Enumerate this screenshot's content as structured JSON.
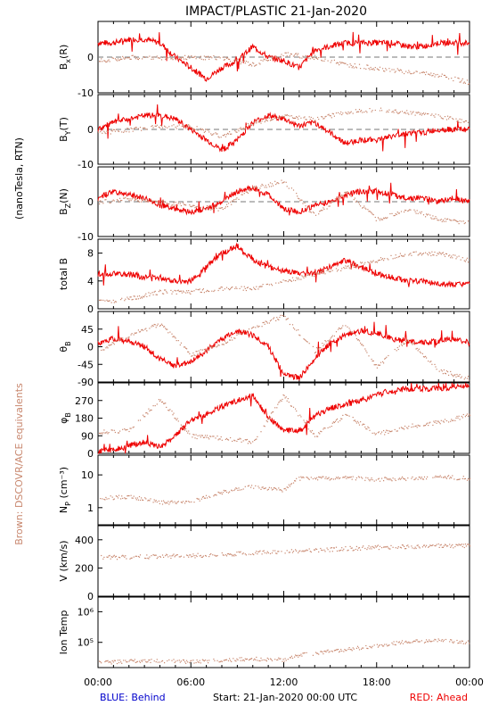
{
  "title": "IMPACT/PLASTIC   21-Jan-2020",
  "left_label_rtn": "(nanoTesla, RTN)",
  "left_label_brown": "Brown: DSCOVR/ACE equivalents",
  "footer": {
    "blue": "BLUE: Behind",
    "start": "Start: 21-Jan-2020 00:00 UTC",
    "red": "RED: Ahead"
  },
  "x_ticks": [
    "00:00",
    "06:00",
    "12:00",
    "18:00",
    "00:00"
  ],
  "colors": {
    "ahead": "#ee0000",
    "dscovr": "#c8876e",
    "behind": "#0000cc",
    "dashed": "#777777"
  },
  "chart_data": [
    {
      "type": "scatter",
      "id": "bx",
      "ylabel": "Bx(R)",
      "ylabel_main": "B",
      "ylabel_sub": "x",
      "ylabel_tail": "(R)",
      "ylim": [
        -10,
        10
      ],
      "ticks": [
        "0",
        "-10"
      ],
      "dashed_zero": true,
      "series": [
        {
          "name": "RED: Ahead",
          "x": [
            0,
            1,
            2,
            3,
            4,
            5,
            6,
            7,
            8,
            9,
            10,
            11,
            12,
            13,
            14,
            15,
            16,
            17,
            18,
            19,
            20,
            21,
            22,
            23,
            24
          ],
          "y": [
            4,
            4,
            5,
            5,
            4,
            0,
            -3,
            -6,
            -3,
            -1,
            3,
            0,
            -1,
            -3,
            2,
            3,
            4,
            4,
            4,
            4,
            3,
            3,
            4,
            4,
            4
          ]
        },
        {
          "name": "DSCOVR/ACE",
          "x": [
            0,
            2,
            4,
            6,
            8,
            10,
            12,
            14,
            16,
            18,
            20,
            22,
            24
          ],
          "y": [
            -1,
            0,
            0,
            0,
            0,
            -2,
            1,
            0,
            -2,
            -3,
            -4,
            -5,
            -7
          ]
        }
      ]
    },
    {
      "type": "scatter",
      "id": "by",
      "ylabel": "By(T)",
      "ylabel_main": "B",
      "ylabel_sub": "Y",
      "ylabel_tail": "(T)",
      "ylim": [
        -10,
        10
      ],
      "ticks": [
        "0",
        "-10"
      ],
      "dashed_zero": true,
      "series": [
        {
          "name": "RED: Ahead",
          "x": [
            0,
            1,
            2,
            3,
            4,
            5,
            6,
            7,
            8,
            9,
            10,
            11,
            12,
            13,
            14,
            15,
            16,
            17,
            18,
            19,
            20,
            21,
            22,
            23,
            24
          ],
          "y": [
            0,
            2,
            3,
            4,
            4,
            3,
            0,
            -3,
            -6,
            -3,
            2,
            4,
            3,
            1,
            2,
            -1,
            -4,
            -3,
            -3,
            -2,
            -1,
            -1,
            0,
            0,
            0
          ]
        },
        {
          "name": "DSCOVR/ACE",
          "x": [
            0,
            2,
            4,
            6,
            8,
            10,
            12,
            14,
            16,
            18,
            20,
            22,
            24
          ],
          "y": [
            -1,
            0,
            1,
            1,
            -2,
            2,
            4,
            3,
            5,
            6,
            5,
            4,
            2
          ]
        }
      ]
    },
    {
      "type": "scatter",
      "id": "bz",
      "ylabel": "Bz(N)",
      "ylabel_main": "B",
      "ylabel_sub": "Z",
      "ylabel_tail": "(N)",
      "ylim": [
        -10,
        10
      ],
      "ticks": [
        "0",
        "-10"
      ],
      "dashed_zero": true,
      "series": [
        {
          "name": "RED: Ahead",
          "x": [
            0,
            1,
            2,
            3,
            4,
            5,
            6,
            7,
            8,
            9,
            10,
            11,
            12,
            13,
            14,
            15,
            16,
            17,
            18,
            19,
            20,
            21,
            22,
            23,
            24
          ],
          "y": [
            1,
            3,
            2,
            1,
            -1,
            -2,
            -3,
            -2,
            0,
            3,
            4,
            2,
            -2,
            -3,
            -1,
            0,
            2,
            3,
            3,
            2,
            1,
            1,
            0,
            1,
            0
          ]
        },
        {
          "name": "DSCOVR/ACE",
          "x": [
            0,
            2,
            4,
            6,
            8,
            10,
            12,
            14,
            16,
            18,
            20,
            22,
            24
          ],
          "y": [
            0,
            1,
            0,
            -1,
            -2,
            4,
            6,
            -4,
            3,
            -5,
            -2,
            -5,
            -6
          ]
        }
      ]
    },
    {
      "type": "scatter",
      "id": "bt",
      "ylabel": "total B",
      "ylim": [
        0,
        10
      ],
      "ticks": [
        "8",
        "4",
        "0"
      ],
      "series": [
        {
          "name": "RED: Ahead",
          "x": [
            0,
            1,
            2,
            3,
            4,
            5,
            6,
            7,
            8,
            9,
            10,
            11,
            12,
            13,
            14,
            15,
            16,
            17,
            18,
            19,
            20,
            21,
            22,
            23,
            24
          ],
          "y": [
            5,
            5,
            5,
            4.5,
            4.5,
            4,
            4,
            6,
            8,
            9,
            7,
            6,
            5.5,
            5,
            5,
            6,
            7,
            6,
            5,
            4.5,
            4,
            4,
            3.5,
            3.5,
            3.5
          ]
        },
        {
          "name": "DSCOVR/ACE",
          "x": [
            0,
            2,
            4,
            6,
            8,
            10,
            12,
            14,
            16,
            18,
            20,
            22,
            24
          ],
          "y": [
            1,
            1.5,
            2.5,
            2.5,
            3,
            3,
            4,
            5,
            6,
            7,
            8,
            8,
            7
          ]
        }
      ]
    },
    {
      "type": "scatter",
      "id": "theta",
      "ylabel": "thetaB",
      "ylabel_main": "θ",
      "ylabel_sub": "B",
      "ylabel_tail": "",
      "ylim": [
        -90,
        90
      ],
      "ticks": [
        "45",
        "0",
        "-45",
        "-90"
      ],
      "series": [
        {
          "name": "RED: Ahead",
          "x": [
            0,
            1,
            2,
            3,
            4,
            5,
            6,
            7,
            8,
            9,
            10,
            11,
            12,
            13,
            14,
            15,
            16,
            17,
            18,
            19,
            20,
            21,
            22,
            23,
            24
          ],
          "y": [
            10,
            20,
            15,
            0,
            -30,
            -50,
            -40,
            -10,
            20,
            40,
            30,
            0,
            -70,
            -80,
            -30,
            10,
            30,
            40,
            35,
            20,
            15,
            10,
            15,
            20,
            10
          ]
        },
        {
          "name": "DSCOVR/ACE",
          "x": [
            0,
            2,
            4,
            6,
            8,
            10,
            12,
            14,
            16,
            18,
            20,
            22,
            24
          ],
          "y": [
            -10,
            30,
            60,
            -20,
            10,
            50,
            80,
            -10,
            60,
            -50,
            20,
            -60,
            -80
          ]
        }
      ]
    },
    {
      "type": "scatter",
      "id": "phi",
      "ylabel": "phiB",
      "ylabel_main": "φ",
      "ylabel_sub": "B",
      "ylabel_tail": "",
      "ylim": [
        0,
        360
      ],
      "ticks": [
        "270",
        "180",
        "90",
        "0"
      ],
      "series": [
        {
          "name": "RED: Ahead",
          "x": [
            0,
            1,
            2,
            3,
            4,
            5,
            6,
            7,
            8,
            9,
            10,
            11,
            12,
            13,
            14,
            15,
            16,
            17,
            18,
            19,
            20,
            21,
            22,
            23,
            24
          ],
          "y": [
            10,
            20,
            40,
            60,
            30,
            90,
            170,
            200,
            240,
            270,
            300,
            180,
            120,
            110,
            190,
            230,
            250,
            270,
            300,
            320,
            330,
            330,
            330,
            340,
            345
          ]
        },
        {
          "name": "DSCOVR/ACE",
          "x": [
            0,
            2,
            4,
            6,
            8,
            10,
            12,
            14,
            16,
            18,
            20,
            22,
            24
          ],
          "y": [
            110,
            120,
            280,
            90,
            80,
            60,
            300,
            90,
            200,
            100,
            140,
            160,
            200
          ]
        }
      ]
    },
    {
      "type": "scatter",
      "id": "np",
      "ylabel": "Np (cm-3)",
      "ylabel_main": "N",
      "ylabel_sub": "P",
      "ylabel_tail": " (cm⁻³)",
      "ylim": [
        0.3,
        40
      ],
      "log": true,
      "ticks": [
        "10",
        "1"
      ],
      "series": [
        {
          "name": "DSCOVR/ACE",
          "x": [
            0,
            2,
            4,
            6,
            8,
            10,
            12,
            13,
            14,
            16,
            18,
            20,
            22,
            24
          ],
          "y": [
            2,
            2.2,
            1.5,
            1.5,
            3,
            4.5,
            3.5,
            8,
            8,
            8.5,
            7.5,
            8,
            9,
            8
          ]
        }
      ]
    },
    {
      "type": "scatter",
      "id": "v",
      "ylabel": "V (km/s)",
      "ylim": [
        0,
        500
      ],
      "ticks": [
        "400",
        "200",
        "0"
      ],
      "series": [
        {
          "name": "DSCOVR/ACE",
          "x": [
            0,
            2,
            4,
            6,
            8,
            10,
            12,
            14,
            16,
            18,
            20,
            22,
            24
          ],
          "y": [
            280,
            280,
            285,
            290,
            300,
            310,
            320,
            330,
            340,
            350,
            355,
            360,
            360
          ]
        }
      ]
    },
    {
      "type": "scatter",
      "id": "temp",
      "ylabel": "Ion Temp",
      "ylim": [
        15000,
        3000000
      ],
      "log": true,
      "ticks": [
        "10⁶",
        "10⁵"
      ],
      "series": [
        {
          "name": "DSCOVR/ACE",
          "x": [
            0,
            2,
            4,
            6,
            8,
            10,
            12,
            13,
            14,
            16,
            18,
            20,
            22,
            24
          ],
          "y": [
            22000,
            25000,
            26000,
            24000,
            27000,
            30000,
            28000,
            40000,
            45000,
            60000,
            80000,
            110000,
            120000,
            100000
          ]
        }
      ]
    }
  ]
}
